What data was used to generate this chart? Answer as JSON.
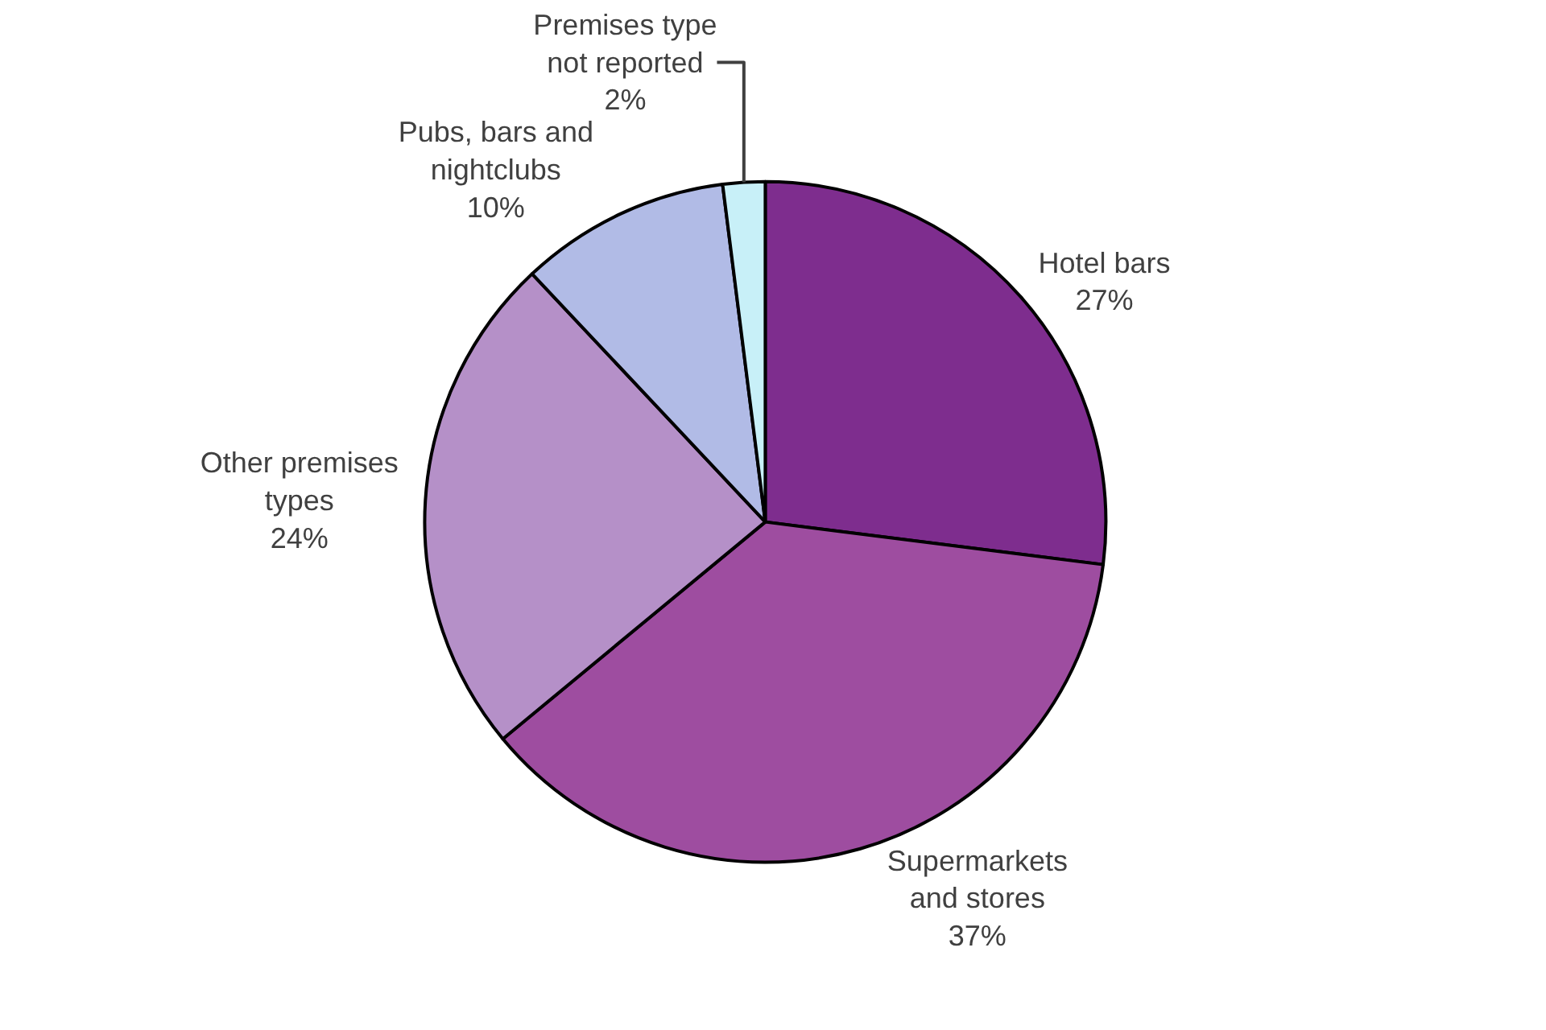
{
  "chart_data": {
    "type": "pie",
    "categories": [
      "Hotel bars",
      "Supermarkets and stores",
      "Other premises types",
      "Pubs, bars and nightclubs",
      "Premises type not reported"
    ],
    "values": [
      27,
      37,
      24,
      10,
      2
    ],
    "value_labels": [
      "27%",
      "37%",
      "24%",
      "10%",
      "2%"
    ],
    "colors": [
      "#7e2d8e",
      "#9e4da0",
      "#b590c8",
      "#b1bbe6",
      "#c8f0f8"
    ],
    "legend": false
  }
}
